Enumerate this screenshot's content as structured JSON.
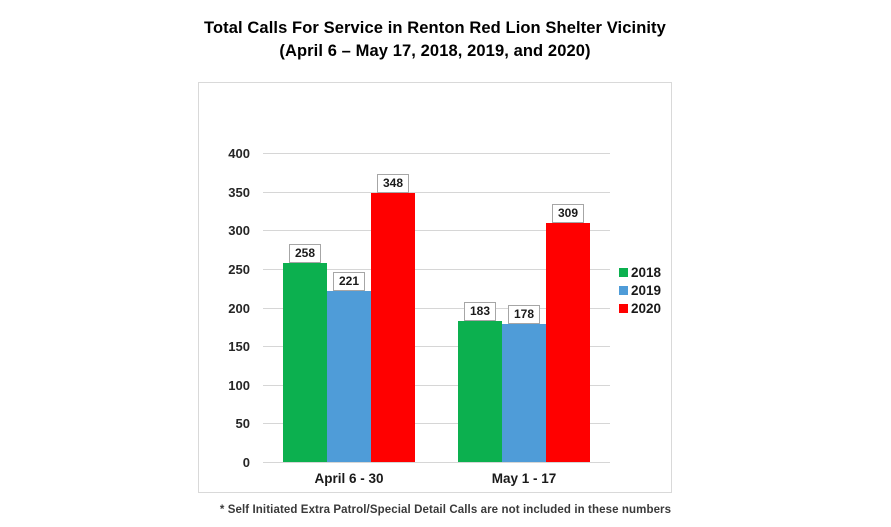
{
  "title": {
    "line1": "Total Calls For Service in Renton Red Lion Shelter Vicinity",
    "line2": "(April 6 – May 17, 2018, 2019, and 2020)"
  },
  "footnote": "* Self Initiated Extra Patrol/Special Detail Calls are not included in these numbers",
  "chart_data": {
    "type": "bar",
    "title": "Total Calls For Service in Renton Red Lion Shelter Vicinity (April 6 – May 17, 2018, 2019, and 2020)",
    "categories": [
      "April 6 - 30",
      "May 1 - 17"
    ],
    "series": [
      {
        "name": "2018",
        "color": "#0cb04f",
        "values": [
          258,
          183
        ]
      },
      {
        "name": "2019",
        "color": "#4f9cd8",
        "values": [
          221,
          178
        ]
      },
      {
        "name": "2020",
        "color": "#ff0000",
        "values": [
          348,
          309
        ]
      }
    ],
    "xlabel": "",
    "ylabel": "",
    "ylim": [
      0,
      400
    ],
    "ytick_step": 50,
    "grid": true,
    "legend_position": "right",
    "data_labels": true,
    "gridline_color": "#d6d6d6"
  }
}
